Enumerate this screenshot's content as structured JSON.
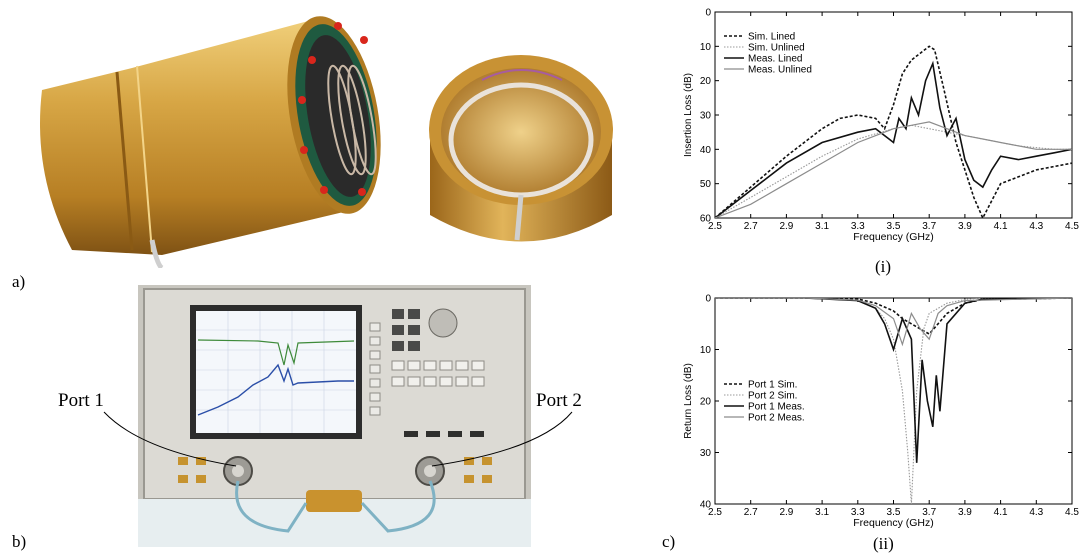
{
  "labels": {
    "panel_a": "a)",
    "panel_b": "b)",
    "panel_c": "c)",
    "port1": "Port 1",
    "port2": "Port 2",
    "sub_i": "(i)",
    "sub_ii": "(ii)"
  },
  "colors": {
    "gold": "#c9922e",
    "gold_light": "#e8c46a",
    "gold_dark": "#8a5a14",
    "vna_panel": "#d9d9d6",
    "screen": "#f4f7fb"
  },
  "chart_data": [
    {
      "type": "line",
      "title": "",
      "xlabel": "Frequency (GHz)",
      "ylabel": "Insertion Loss (dB)",
      "xlim": [
        2.5,
        4.5
      ],
      "ylim": [
        0,
        60
      ],
      "y_reversed": true,
      "xticks": [
        "2.5",
        "2.7",
        "2.9",
        "3.1",
        "3.3",
        "3.5",
        "3.7",
        "3.9",
        "4.1",
        "4.3",
        "4.5"
      ],
      "yticks": [
        "0",
        "10",
        "20",
        "30",
        "40",
        "50",
        "60"
      ],
      "grid": false,
      "legend_position": "top-left",
      "series": [
        {
          "name": "Sim. Lined",
          "style": "dashed-black",
          "x": [
            2.5,
            2.7,
            2.9,
            3.1,
            3.2,
            3.3,
            3.4,
            3.45,
            3.5,
            3.55,
            3.6,
            3.65,
            3.7,
            3.73,
            3.78,
            3.85,
            3.9,
            3.95,
            4.0,
            4.05,
            4.1,
            4.2,
            4.3,
            4.4,
            4.5
          ],
          "y": [
            60,
            51,
            42,
            34,
            31,
            30,
            31,
            34,
            27,
            18,
            14,
            12,
            10,
            11,
            22,
            38,
            46,
            54,
            60,
            55,
            50,
            48,
            46,
            45,
            44
          ]
        },
        {
          "name": "Sim. Unlined",
          "style": "dotted-gray",
          "x": [
            2.5,
            2.7,
            2.9,
            3.1,
            3.3,
            3.5,
            3.6,
            3.7,
            3.8,
            3.9,
            4.0,
            4.1,
            4.2,
            4.3,
            4.4,
            4.5
          ],
          "y": [
            60,
            54,
            48,
            42,
            37,
            34,
            33,
            34,
            35,
            36,
            37,
            38,
            39,
            39.5,
            40,
            40
          ]
        },
        {
          "name": "Meas. Lined",
          "style": "solid-black",
          "x": [
            2.5,
            2.7,
            2.9,
            3.1,
            3.3,
            3.4,
            3.5,
            3.53,
            3.57,
            3.6,
            3.64,
            3.68,
            3.72,
            3.76,
            3.8,
            3.85,
            3.9,
            3.95,
            4.0,
            4.05,
            4.1,
            4.2,
            4.3,
            4.4,
            4.5
          ],
          "y": [
            60,
            52,
            44,
            38,
            35,
            34,
            38,
            31,
            34,
            25,
            30,
            20,
            15,
            28,
            36,
            31,
            43,
            49,
            51,
            46,
            42,
            43,
            42,
            41,
            40
          ]
        },
        {
          "name": "Meas. Unlined",
          "style": "solid-gray",
          "x": [
            2.5,
            2.7,
            2.9,
            3.1,
            3.3,
            3.5,
            3.6,
            3.7,
            3.8,
            3.9,
            4.0,
            4.1,
            4.2,
            4.3,
            4.4,
            4.5
          ],
          "y": [
            60,
            56,
            50,
            44,
            38,
            34,
            33,
            32,
            34,
            36,
            37,
            38,
            39,
            40,
            40,
            40
          ]
        }
      ]
    },
    {
      "type": "line",
      "title": "",
      "xlabel": "Frequency (GHz)",
      "ylabel": "Return Loss (dB)",
      "xlim": [
        2.5,
        4.5
      ],
      "ylim": [
        0,
        40
      ],
      "y_reversed": true,
      "xticks": [
        "2.5",
        "2.7",
        "2.9",
        "3.1",
        "3.3",
        "3.5",
        "3.7",
        "3.9",
        "4.1",
        "4.3",
        "4.5"
      ],
      "yticks": [
        "0",
        "10",
        "20",
        "30",
        "40"
      ],
      "grid": false,
      "legend_position": "middle-left",
      "series": [
        {
          "name": "Port 1 Sim.",
          "style": "dashed-black",
          "x": [
            2.5,
            3.0,
            3.3,
            3.4,
            3.5,
            3.55,
            3.6,
            3.65,
            3.7,
            3.75,
            3.8,
            3.9,
            4.0,
            4.5
          ],
          "y": [
            0,
            0,
            0.2,
            1,
            2.5,
            4,
            5,
            6,
            7,
            5,
            3,
            1,
            0.3,
            0
          ]
        },
        {
          "name": "Port 2 Sim.",
          "style": "dotted-gray",
          "x": [
            2.5,
            3.0,
            3.3,
            3.4,
            3.45,
            3.5,
            3.55,
            3.58,
            3.6,
            3.63,
            3.67,
            3.7,
            3.8,
            3.9,
            4.0,
            4.5
          ],
          "y": [
            0,
            0,
            0.5,
            2,
            4,
            8,
            18,
            30,
            40,
            18,
            6,
            3,
            1,
            0.3,
            0,
            0
          ]
        },
        {
          "name": "Port 1 Meas.",
          "style": "solid-black",
          "x": [
            2.5,
            3.0,
            3.3,
            3.4,
            3.45,
            3.5,
            3.55,
            3.6,
            3.63,
            3.66,
            3.69,
            3.72,
            3.74,
            3.76,
            3.8,
            3.9,
            4.0,
            4.5
          ],
          "y": [
            0,
            0,
            0.5,
            2,
            5,
            10,
            4,
            8,
            32,
            12,
            20,
            25,
            15,
            22,
            5,
            1,
            0.2,
            0
          ]
        },
        {
          "name": "Port 2 Meas.",
          "style": "solid-gray",
          "x": [
            2.5,
            3.0,
            3.3,
            3.4,
            3.5,
            3.55,
            3.6,
            3.65,
            3.7,
            3.75,
            3.8,
            3.9,
            4.5
          ],
          "y": [
            0,
            0,
            0.4,
            1.5,
            4,
            9,
            3,
            6,
            8,
            3,
            1.5,
            0.5,
            0
          ]
        }
      ]
    }
  ]
}
